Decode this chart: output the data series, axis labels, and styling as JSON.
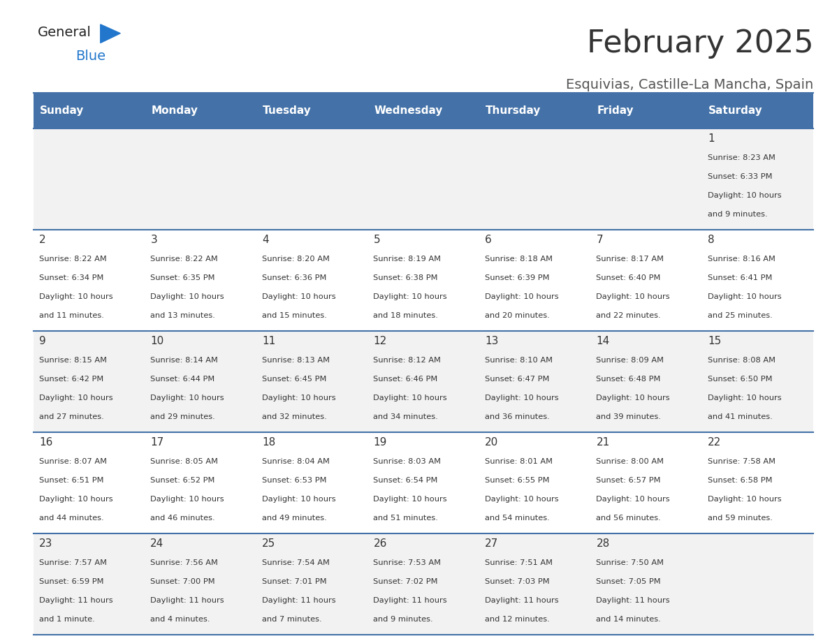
{
  "title": "February 2025",
  "subtitle": "Esquivias, Castille-La Mancha, Spain",
  "days_of_week": [
    "Sunday",
    "Monday",
    "Tuesday",
    "Wednesday",
    "Thursday",
    "Friday",
    "Saturday"
  ],
  "header_bg": "#4472a8",
  "header_text": "#ffffff",
  "row_bg_odd": "#f2f2f2",
  "row_bg_even": "#ffffff",
  "divider_color": "#4472a8",
  "cell_text_color": "#333333",
  "day_num_color": "#333333",
  "calendar_data": [
    [
      null,
      null,
      null,
      null,
      null,
      null,
      {
        "day": 1,
        "sunrise": "8:23 AM",
        "sunset": "6:33 PM",
        "daylight": "10 hours and 9 minutes."
      }
    ],
    [
      {
        "day": 2,
        "sunrise": "8:22 AM",
        "sunset": "6:34 PM",
        "daylight": "10 hours and 11 minutes."
      },
      {
        "day": 3,
        "sunrise": "8:22 AM",
        "sunset": "6:35 PM",
        "daylight": "10 hours and 13 minutes."
      },
      {
        "day": 4,
        "sunrise": "8:20 AM",
        "sunset": "6:36 PM",
        "daylight": "10 hours and 15 minutes."
      },
      {
        "day": 5,
        "sunrise": "8:19 AM",
        "sunset": "6:38 PM",
        "daylight": "10 hours and 18 minutes."
      },
      {
        "day": 6,
        "sunrise": "8:18 AM",
        "sunset": "6:39 PM",
        "daylight": "10 hours and 20 minutes."
      },
      {
        "day": 7,
        "sunrise": "8:17 AM",
        "sunset": "6:40 PM",
        "daylight": "10 hours and 22 minutes."
      },
      {
        "day": 8,
        "sunrise": "8:16 AM",
        "sunset": "6:41 PM",
        "daylight": "10 hours and 25 minutes."
      }
    ],
    [
      {
        "day": 9,
        "sunrise": "8:15 AM",
        "sunset": "6:42 PM",
        "daylight": "10 hours and 27 minutes."
      },
      {
        "day": 10,
        "sunrise": "8:14 AM",
        "sunset": "6:44 PM",
        "daylight": "10 hours and 29 minutes."
      },
      {
        "day": 11,
        "sunrise": "8:13 AM",
        "sunset": "6:45 PM",
        "daylight": "10 hours and 32 minutes."
      },
      {
        "day": 12,
        "sunrise": "8:12 AM",
        "sunset": "6:46 PM",
        "daylight": "10 hours and 34 minutes."
      },
      {
        "day": 13,
        "sunrise": "8:10 AM",
        "sunset": "6:47 PM",
        "daylight": "10 hours and 36 minutes."
      },
      {
        "day": 14,
        "sunrise": "8:09 AM",
        "sunset": "6:48 PM",
        "daylight": "10 hours and 39 minutes."
      },
      {
        "day": 15,
        "sunrise": "8:08 AM",
        "sunset": "6:50 PM",
        "daylight": "10 hours and 41 minutes."
      }
    ],
    [
      {
        "day": 16,
        "sunrise": "8:07 AM",
        "sunset": "6:51 PM",
        "daylight": "10 hours and 44 minutes."
      },
      {
        "day": 17,
        "sunrise": "8:05 AM",
        "sunset": "6:52 PM",
        "daylight": "10 hours and 46 minutes."
      },
      {
        "day": 18,
        "sunrise": "8:04 AM",
        "sunset": "6:53 PM",
        "daylight": "10 hours and 49 minutes."
      },
      {
        "day": 19,
        "sunrise": "8:03 AM",
        "sunset": "6:54 PM",
        "daylight": "10 hours and 51 minutes."
      },
      {
        "day": 20,
        "sunrise": "8:01 AM",
        "sunset": "6:55 PM",
        "daylight": "10 hours and 54 minutes."
      },
      {
        "day": 21,
        "sunrise": "8:00 AM",
        "sunset": "6:57 PM",
        "daylight": "10 hours and 56 minutes."
      },
      {
        "day": 22,
        "sunrise": "7:58 AM",
        "sunset": "6:58 PM",
        "daylight": "10 hours and 59 minutes."
      }
    ],
    [
      {
        "day": 23,
        "sunrise": "7:57 AM",
        "sunset": "6:59 PM",
        "daylight": "11 hours and 1 minute."
      },
      {
        "day": 24,
        "sunrise": "7:56 AM",
        "sunset": "7:00 PM",
        "daylight": "11 hours and 4 minutes."
      },
      {
        "day": 25,
        "sunrise": "7:54 AM",
        "sunset": "7:01 PM",
        "daylight": "11 hours and 7 minutes."
      },
      {
        "day": 26,
        "sunrise": "7:53 AM",
        "sunset": "7:02 PM",
        "daylight": "11 hours and 9 minutes."
      },
      {
        "day": 27,
        "sunrise": "7:51 AM",
        "sunset": "7:03 PM",
        "daylight": "11 hours and 12 minutes."
      },
      {
        "day": 28,
        "sunrise": "7:50 AM",
        "sunset": "7:05 PM",
        "daylight": "11 hours and 14 minutes."
      },
      null
    ]
  ]
}
